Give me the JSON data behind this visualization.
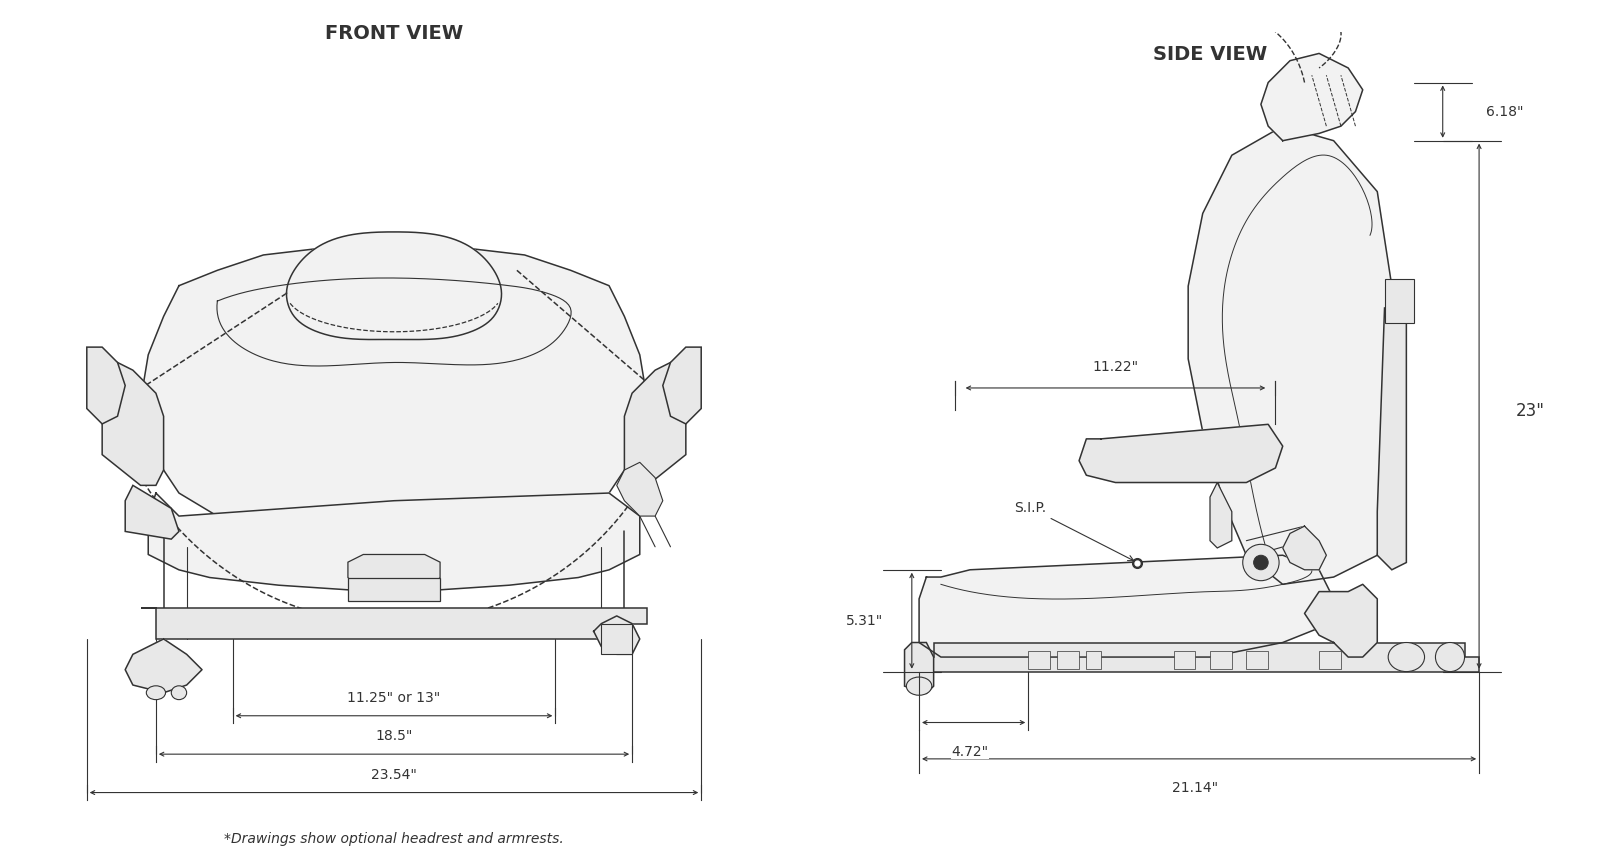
{
  "title_front": "FRONT VIEW",
  "title_side": "SIDE VIEW",
  "footnote": "*Drawings show optional headrest and armrests.",
  "dims_front": {
    "w1": "11.25\" or 13\"",
    "w2": "18.5\"",
    "w3": "23.54\""
  },
  "dims_side": {
    "h_headrest": "6.18\"",
    "w_armrest": "11.22\"",
    "h_total": "23\"",
    "h_cushion": "5.31\"",
    "w_offset": "4.72\"",
    "w_base": "21.14\"",
    "sip": "S.I.P."
  },
  "lc": "#333333",
  "bg": "#ffffff",
  "fill_seat": "#f2f2f2",
  "fill_light": "#e8e8e8",
  "lw_main": 1.1,
  "lw_dim": 0.8,
  "fs_title": 14,
  "fs_dim": 10,
  "fs_note": 10
}
